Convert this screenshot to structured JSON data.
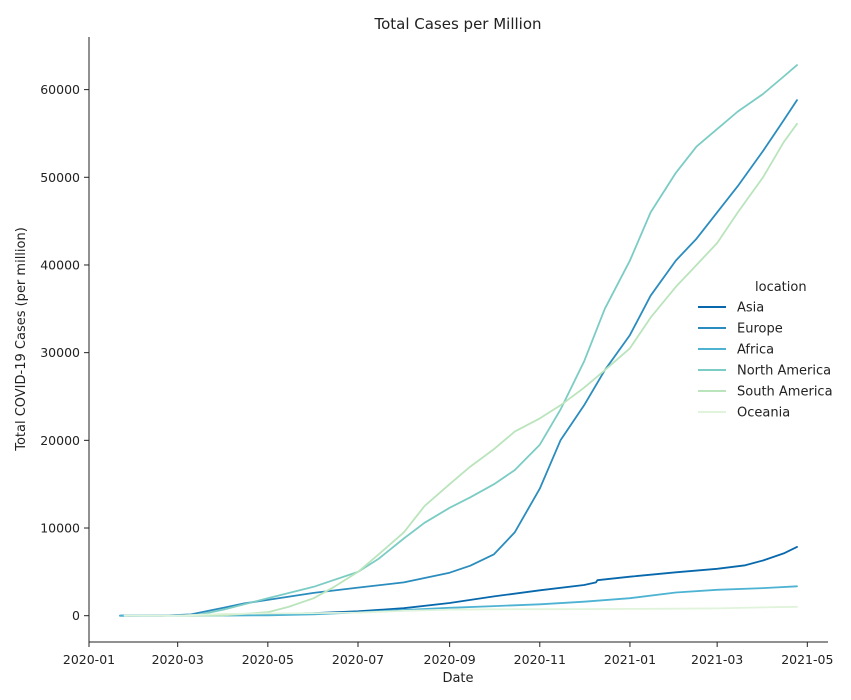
{
  "chart_data": {
    "type": "line",
    "title": "Total Cases per Million",
    "xlabel": "Date",
    "ylabel": "Total COVID-19 Cases (per million)",
    "xlim": [
      "2020-01-01",
      "2021-05-15"
    ],
    "ylim": [
      -3000,
      66000
    ],
    "x_ticks": [
      "2020-01",
      "2020-03",
      "2020-05",
      "2020-07",
      "2020-09",
      "2020-11",
      "2021-01",
      "2021-03",
      "2021-05"
    ],
    "x_tick_dates": [
      "2020-01-01",
      "2020-03-01",
      "2020-05-01",
      "2020-07-01",
      "2020-09-01",
      "2020-11-01",
      "2021-01-01",
      "2021-03-01",
      "2021-05-01"
    ],
    "y_ticks": [
      0,
      10000,
      20000,
      30000,
      40000,
      50000,
      60000
    ],
    "grid": false,
    "legend": {
      "title": "location",
      "placement": "right"
    },
    "series": [
      {
        "name": "Asia",
        "color": "#0868ac",
        "points": [
          [
            "2020-01-22",
            0
          ],
          [
            "2020-03-01",
            30
          ],
          [
            "2020-04-01",
            90
          ],
          [
            "2020-05-01",
            180
          ],
          [
            "2020-06-01",
            280
          ],
          [
            "2020-07-01",
            500
          ],
          [
            "2020-08-01",
            850
          ],
          [
            "2020-09-01",
            1450
          ],
          [
            "2020-10-01",
            2200
          ],
          [
            "2020-11-01",
            2900
          ],
          [
            "2020-12-01",
            3500
          ],
          [
            "2020-12-09",
            3800
          ],
          [
            "2020-12-10",
            4050
          ],
          [
            "2021-01-01",
            4450
          ],
          [
            "2021-02-01",
            4950
          ],
          [
            "2021-03-01",
            5350
          ],
          [
            "2021-03-20",
            5750
          ],
          [
            "2021-04-01",
            6300
          ],
          [
            "2021-04-15",
            7100
          ],
          [
            "2021-04-24",
            7850
          ]
        ]
      },
      {
        "name": "Europe",
        "color": "#2b8cbe",
        "points": [
          [
            "2020-01-24",
            0
          ],
          [
            "2020-02-20",
            0
          ],
          [
            "2020-03-10",
            150
          ],
          [
            "2020-04-01",
            900
          ],
          [
            "2020-04-15",
            1400
          ],
          [
            "2020-05-01",
            1800
          ],
          [
            "2020-06-01",
            2600
          ],
          [
            "2020-07-01",
            3200
          ],
          [
            "2020-08-01",
            3800
          ],
          [
            "2020-09-01",
            4900
          ],
          [
            "2020-09-15",
            5700
          ],
          [
            "2020-10-01",
            7000
          ],
          [
            "2020-10-15",
            9500
          ],
          [
            "2020-11-01",
            14500
          ],
          [
            "2020-11-15",
            20000
          ],
          [
            "2020-12-01",
            24000
          ],
          [
            "2020-12-15",
            28000
          ],
          [
            "2021-01-01",
            32000
          ],
          [
            "2021-01-15",
            36500
          ],
          [
            "2021-02-01",
            40500
          ],
          [
            "2021-02-15",
            43000
          ],
          [
            "2021-03-01",
            46000
          ],
          [
            "2021-03-15",
            49000
          ],
          [
            "2021-04-01",
            53000
          ],
          [
            "2021-04-15",
            56500
          ],
          [
            "2021-04-24",
            58800
          ]
        ]
      },
      {
        "name": "Africa",
        "color": "#4eb3d3",
        "points": [
          [
            "2020-01-22",
            0
          ],
          [
            "2020-03-01",
            0
          ],
          [
            "2020-04-01",
            10
          ],
          [
            "2020-05-01",
            40
          ],
          [
            "2020-06-01",
            150
          ],
          [
            "2020-07-01",
            380
          ],
          [
            "2020-08-01",
            650
          ],
          [
            "2020-09-01",
            900
          ],
          [
            "2020-10-01",
            1100
          ],
          [
            "2020-11-01",
            1300
          ],
          [
            "2020-12-01",
            1600
          ],
          [
            "2021-01-01",
            2000
          ],
          [
            "2021-02-01",
            2650
          ],
          [
            "2021-03-01",
            2950
          ],
          [
            "2021-04-01",
            3150
          ],
          [
            "2021-04-24",
            3350
          ]
        ]
      },
      {
        "name": "North America",
        "color": "#7bccc4",
        "points": [
          [
            "2020-03-01",
            0
          ],
          [
            "2020-03-15",
            100
          ],
          [
            "2020-04-01",
            700
          ],
          [
            "2020-04-15",
            1300
          ],
          [
            "2020-05-01",
            2000
          ],
          [
            "2020-06-01",
            3300
          ],
          [
            "2020-07-01",
            5000
          ],
          [
            "2020-07-15",
            6500
          ],
          [
            "2020-08-01",
            8800
          ],
          [
            "2020-08-15",
            10600
          ],
          [
            "2020-09-01",
            12300
          ],
          [
            "2020-09-15",
            13500
          ],
          [
            "2020-10-01",
            15000
          ],
          [
            "2020-10-15",
            16600
          ],
          [
            "2020-11-01",
            19500
          ],
          [
            "2020-11-15",
            23500
          ],
          [
            "2020-12-01",
            29000
          ],
          [
            "2020-12-15",
            35000
          ],
          [
            "2021-01-01",
            40500
          ],
          [
            "2021-01-15",
            46000
          ],
          [
            "2021-02-01",
            50500
          ],
          [
            "2021-02-15",
            53500
          ],
          [
            "2021-03-01",
            55500
          ],
          [
            "2021-03-15",
            57500
          ],
          [
            "2021-04-01",
            59500
          ],
          [
            "2021-04-15",
            61500
          ],
          [
            "2021-04-24",
            62800
          ]
        ]
      },
      {
        "name": "South America",
        "color": "#bae4bc",
        "points": [
          [
            "2020-03-01",
            0
          ],
          [
            "2020-04-01",
            50
          ],
          [
            "2020-05-01",
            400
          ],
          [
            "2020-05-15",
            1000
          ],
          [
            "2020-06-01",
            2000
          ],
          [
            "2020-06-15",
            3300
          ],
          [
            "2020-07-01",
            5000
          ],
          [
            "2020-07-15",
            7000
          ],
          [
            "2020-08-01",
            9500
          ],
          [
            "2020-08-15",
            12500
          ],
          [
            "2020-09-01",
            15000
          ],
          [
            "2020-09-15",
            17000
          ],
          [
            "2020-10-01",
            19000
          ],
          [
            "2020-10-15",
            21000
          ],
          [
            "2020-11-01",
            22500
          ],
          [
            "2020-11-15",
            24000
          ],
          [
            "2020-12-01",
            26000
          ],
          [
            "2020-12-15",
            28000
          ],
          [
            "2021-01-01",
            30500
          ],
          [
            "2021-01-15",
            34000
          ],
          [
            "2021-02-01",
            37500
          ],
          [
            "2021-02-15",
            40000
          ],
          [
            "2021-03-01",
            42500
          ],
          [
            "2021-03-15",
            46000
          ],
          [
            "2021-04-01",
            50000
          ],
          [
            "2021-04-15",
            54000
          ],
          [
            "2021-04-24",
            56100
          ]
        ]
      },
      {
        "name": "Oceania",
        "color": "#e0f3db",
        "points": [
          [
            "2020-01-25",
            0
          ],
          [
            "2020-03-01",
            0
          ],
          [
            "2020-04-01",
            200
          ],
          [
            "2020-05-01",
            250
          ],
          [
            "2020-06-01",
            300
          ],
          [
            "2020-07-01",
            350
          ],
          [
            "2020-08-01",
            550
          ],
          [
            "2020-09-01",
            700
          ],
          [
            "2020-10-01",
            730
          ],
          [
            "2020-11-01",
            740
          ],
          [
            "2020-12-01",
            750
          ],
          [
            "2021-01-01",
            770
          ],
          [
            "2021-02-01",
            800
          ],
          [
            "2021-03-01",
            830
          ],
          [
            "2021-04-01",
            950
          ],
          [
            "2021-04-24",
            1020
          ]
        ]
      }
    ]
  }
}
